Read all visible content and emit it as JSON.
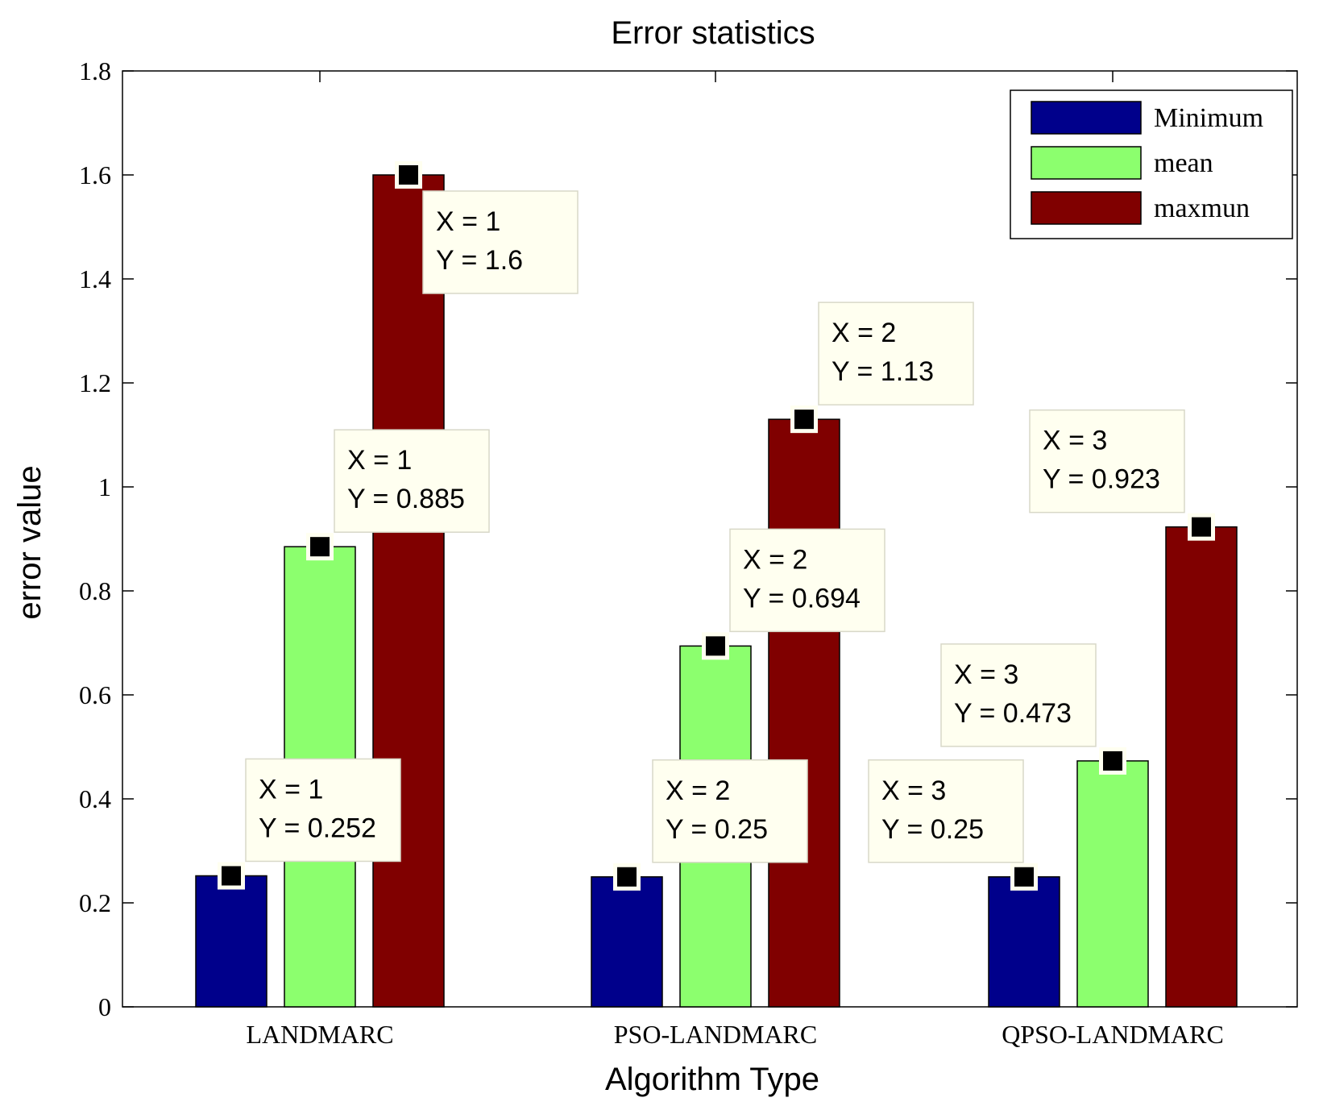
{
  "chart_data": {
    "type": "bar",
    "title": "Error statistics",
    "xlabel": "Algorithm Type",
    "ylabel": "error value",
    "categories": [
      "LANDMARC",
      "PSO-LANDMARC",
      "QPSO-LANDMARC"
    ],
    "series": [
      {
        "name": "Minimum",
        "color": "#00008B",
        "values": [
          0.252,
          0.25,
          0.25
        ]
      },
      {
        "name": "mean",
        "color": "#8CFF6E",
        "values": [
          0.885,
          0.694,
          0.473
        ]
      },
      {
        "name": "maxmun",
        "color": "#800000",
        "values": [
          1.6,
          1.13,
          0.923
        ]
      }
    ],
    "ylim": [
      0,
      1.8
    ],
    "yticks": [
      "0",
      "0.2",
      "0.4",
      "0.6",
      "0.8",
      "1",
      "1.2",
      "1.4",
      "1.6",
      "1.8"
    ],
    "ytick_values": [
      0,
      0.2,
      0.4,
      0.6,
      0.8,
      1.0,
      1.2,
      1.4,
      1.6,
      1.8
    ],
    "grid": false,
    "legend_position": "top-right",
    "datatips": [
      {
        "x_text": "X = 1",
        "y_text": "Y = 0.252",
        "category": 0,
        "series": 0,
        "value": 0.252
      },
      {
        "x_text": "X = 1",
        "y_text": "Y = 0.885",
        "category": 0,
        "series": 1,
        "value": 0.885
      },
      {
        "x_text": "X = 1",
        "y_text": "Y = 1.6",
        "category": 0,
        "series": 2,
        "value": 1.6
      },
      {
        "x_text": "X = 2",
        "y_text": "Y = 0.25",
        "category": 1,
        "series": 0,
        "value": 0.25
      },
      {
        "x_text": "X = 2",
        "y_text": "Y = 0.694",
        "category": 1,
        "series": 1,
        "value": 0.694
      },
      {
        "x_text": "X = 2",
        "y_text": "Y = 1.13",
        "category": 1,
        "series": 2,
        "value": 1.13
      },
      {
        "x_text": "X = 3",
        "y_text": "Y = 0.25",
        "category": 2,
        "series": 0,
        "value": 0.25
      },
      {
        "x_text": "X = 3",
        "y_text": "Y = 0.473",
        "category": 2,
        "series": 1,
        "value": 0.473
      },
      {
        "x_text": "X = 3",
        "y_text": "Y = 0.923",
        "category": 2,
        "series": 2,
        "value": 0.923
      }
    ]
  }
}
